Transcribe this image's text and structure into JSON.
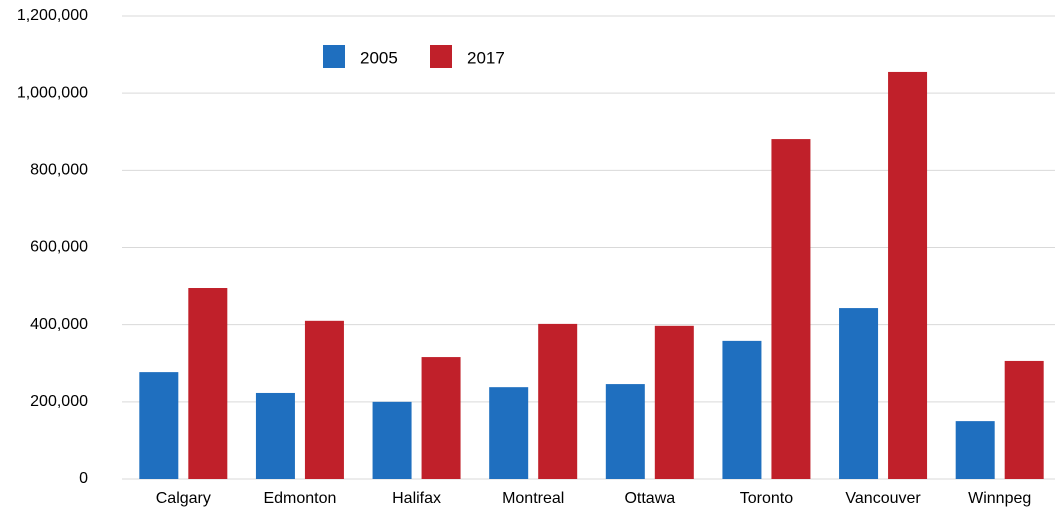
{
  "chart_data": {
    "type": "bar",
    "categories": [
      "Calgary",
      "Edmonton",
      "Halifax",
      "Montreal",
      "Ottawa",
      "Toronto",
      "Vancouver",
      "Winnpeg"
    ],
    "series": [
      {
        "name": "2005",
        "color": "#1f6fbf",
        "values": [
          277000,
          223000,
          200000,
          238000,
          246000,
          358000,
          443000,
          150000
        ]
      },
      {
        "name": "2017",
        "color": "#c0202a",
        "values": [
          495000,
          410000,
          316000,
          402000,
          397000,
          881000,
          1055000,
          306000
        ]
      }
    ],
    "ylim": [
      0,
      1200000
    ],
    "yticks": [
      0,
      {
        "value": 200000,
        "label": "200,000"
      },
      {
        "value": 400000,
        "label": "400,000"
      },
      {
        "value": 600000,
        "label": "600,000"
      },
      {
        "value": 800000,
        "label": "800,000"
      },
      {
        "value": 1000000,
        "label": "1,000,000"
      },
      {
        "value": 1200000,
        "label": "1,200,000"
      }
    ],
    "grid": true,
    "legend": "top-left"
  }
}
